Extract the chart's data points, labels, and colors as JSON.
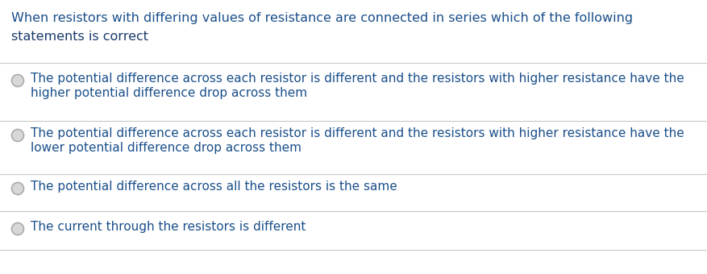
{
  "background_color": "#ffffff",
  "q_line1": "When resistors with differing values of resistance are connected in series which of the following",
  "q_line2": "statements is correct",
  "q_line1_color": "#1a4f8a",
  "q_line2_color": "#1a3a6b",
  "option_text_color": "#1a4f8a",
  "options": [
    {
      "line1": "The potential difference across each resistor is different and the resistors with higher resistance have the",
      "line2": "higher potential difference drop across them"
    },
    {
      "line1": "The potential difference across each resistor is different and the resistors with higher resistance have the",
      "line2": "lower potential difference drop across them"
    },
    {
      "line1": "The potential difference across all the resistors is the same",
      "line2": null
    },
    {
      "line1": "The current through the resistors is different",
      "line2": null
    }
  ],
  "separator_color": "#c8c8c8",
  "circle_edge_color": "#aaaaaa",
  "circle_face_color": "#d8d8d8",
  "fig_width": 8.77,
  "fig_height": 3.4,
  "dpi": 100,
  "font_size_q": 11.5,
  "font_size_opt": 11.0
}
